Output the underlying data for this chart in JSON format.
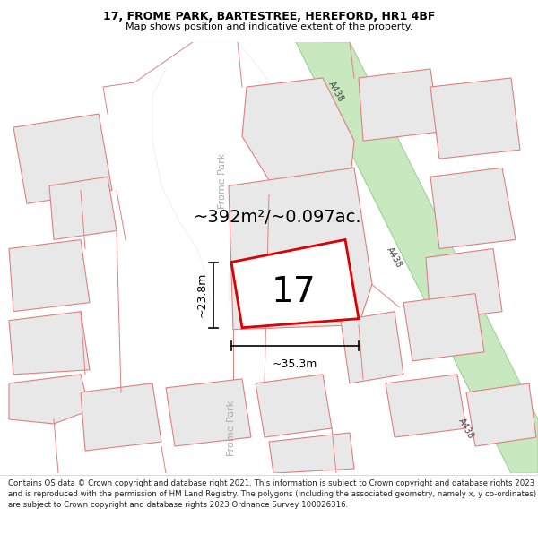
{
  "title_line1": "17, FROME PARK, BARTESTREE, HEREFORD, HR1 4BF",
  "title_line2": "Map shows position and indicative extent of the property.",
  "area_text": "~392m²/~0.097ac.",
  "label_17": "17",
  "dim_width": "~35.3m",
  "dim_height": "~23.8m",
  "road_label1": "Frome Park",
  "road_label2": "Frome Park",
  "road_label_a438_1": "A438",
  "road_label_a438_2": "A438",
  "road_label_a438_3": "A438",
  "footer": "Contains OS data © Crown copyright and database right 2021. This information is subject to Crown copyright and database rights 2023 and is reproduced with the permission of HM Land Registry. The polygons (including the associated geometry, namely x, y co-ordinates) are subject to Crown copyright and database rights 2023 Ordnance Survey 100026316.",
  "map_bg": "#ffffff",
  "road_color": "#ffffff",
  "plot_fill": "#e8e8e8",
  "plot_edge": "#e08080",
  "plot_edge_width": 0.8,
  "highlight_plot_edge": "#dd0000",
  "highlight_plot_fill": "#ffffff",
  "highlight_plot_lw": 2.0,
  "a438_fill": "#c8e8c0",
  "a438_edge": "#90c890",
  "a438_label_color": "#444444",
  "dim_line_color": "#000000",
  "text_color": "#000000",
  "road_label_color": "#aaaaaa",
  "footer_color": "#222222",
  "title_fontsize": 9,
  "subtitle_fontsize": 8,
  "area_fontsize": 14,
  "label17_fontsize": 28,
  "dim_fontsize": 9,
  "road_fontsize": 8,
  "a438_fontsize": 7,
  "footer_fontsize": 6.2
}
